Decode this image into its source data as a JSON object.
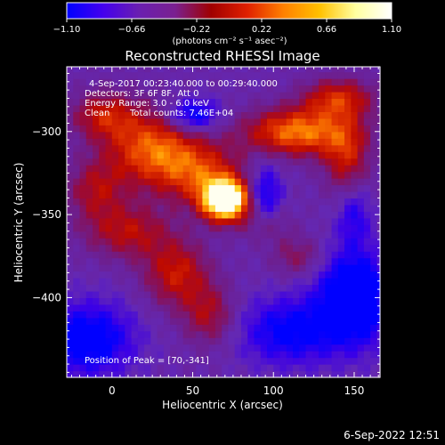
{
  "chart_data": {
    "type": "heatmap",
    "title": "Reconstructed RHESSI Image",
    "xlabel": "Heliocentric X (arcsec)",
    "ylabel": "Heliocentric Y (arcsec)",
    "xlim": [
      -28,
      166
    ],
    "ylim": [
      -448,
      -261
    ],
    "x_ticks": [
      0,
      50,
      100,
      150
    ],
    "y_ticks": [
      -300,
      -350,
      -400
    ],
    "colorbar": {
      "min": -1.1,
      "max": 1.1,
      "ticks": [
        "-1.10",
        "-0.66",
        "-0.22",
        "0.22",
        "0.66",
        "1.10"
      ],
      "unit_label": "(photons cm⁻² s⁻¹ asec⁻²)",
      "colors": [
        "#0000ff",
        "#4400ee",
        "#6a1fb0",
        "#7a2090",
        "#a00000",
        "#e02000",
        "#ff8000",
        "#ffc000",
        "#ffffa0",
        "#ffffff"
      ]
    },
    "annotations": {
      "time_range": "4-Sep-2017 00:23:40.000 to 00:29:40.000",
      "detectors": "Detectors: 3F 6F 8F, Att 0",
      "energy_range": "Energy Range: 3.0 - 6.0 keV",
      "method": "Clean",
      "total_counts": "Total counts: 7.46E+04",
      "peak": "Position of Peak = [70,-341]"
    },
    "peak": [
      70,
      -341
    ]
  },
  "footer": {
    "date": "6-Sep-2022 12:51"
  }
}
